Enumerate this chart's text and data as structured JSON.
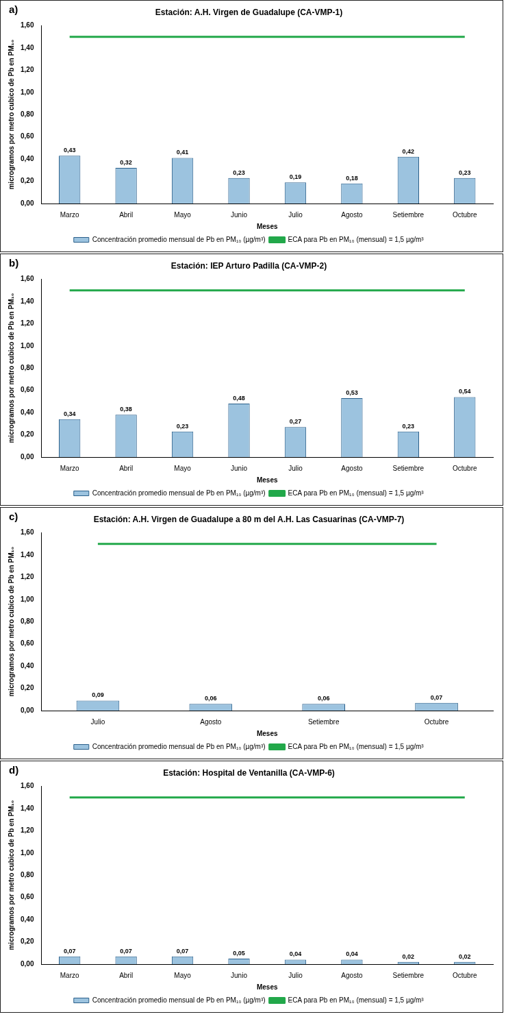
{
  "chart_data": [
    {
      "type": "bar",
      "title": "Estación: A.H. Virgen de Guadalupe (CA-VMP-1)",
      "annotations": [
        "a)"
      ],
      "xlabel": "Meses",
      "ylabel": "microgramos por metro cubico de Pb en PM₁₀",
      "categories": [
        "Marzo",
        "Abril",
        "Mayo",
        "Junio",
        "Julio",
        "Agosto",
        "Setiembre",
        "Octubre"
      ],
      "series": [
        {
          "name": "Concentración promedio mensual de Pb en PM₁₀ (µg/m³)",
          "color": "#9cc3df",
          "values": [
            0.43,
            0.32,
            0.41,
            0.23,
            0.19,
            0.18,
            0.42,
            0.23
          ],
          "value_labels": [
            "0,43",
            "0,32",
            "0,41",
            "0,23",
            "0,19",
            "0,18",
            "0,42",
            "0,23"
          ]
        },
        {
          "name": "ECA para Pb en PM₁₀ (mensual) = 1,5 µg/m³",
          "type": "line",
          "color": "#22a84a",
          "values": [
            1.5,
            1.5,
            1.5,
            1.5,
            1.5,
            1.5,
            1.5,
            1.5
          ]
        }
      ],
      "ylim": [
        0,
        1.6
      ],
      "yticks": [
        {
          "value": 0,
          "label": "0,00"
        },
        {
          "value": 0.2,
          "label": "0,20"
        },
        {
          "value": 0.4,
          "label": "0,40"
        },
        {
          "value": 0.6,
          "label": "0,60"
        },
        {
          "value": 0.8,
          "label": "0,80"
        },
        {
          "value": 1,
          "label": "1,00"
        },
        {
          "value": 1.2,
          "label": "1,20"
        },
        {
          "value": 1.4,
          "label": "1,40"
        },
        {
          "value": 1.6,
          "label": "1,60"
        }
      ],
      "legend": "bottom",
      "marker": "none"
    },
    {
      "type": "bar",
      "title": "Estación: IEP Arturo Padilla (CA-VMP-2)",
      "annotations": [
        "b)"
      ],
      "xlabel": "Meses",
      "ylabel": "microgramos por metro cubico de Pb en PM₁₀",
      "categories": [
        "Marzo",
        "Abril",
        "Mayo",
        "Junio",
        "Julio",
        "Agosto",
        "Setiembre",
        "Octubre"
      ],
      "series": [
        {
          "name": "Concentración promedio mensual de Pb en PM₁₀ (µg/m³)",
          "color": "#9cc3df",
          "values": [
            0.34,
            0.38,
            0.23,
            0.48,
            0.27,
            0.53,
            0.23,
            0.54
          ],
          "value_labels": [
            "0,34",
            "0,38",
            "0,23",
            "0,48",
            "0,27",
            "0,53",
            "0,23",
            "0,54"
          ]
        },
        {
          "name": "ECA para Pb en PM₁₀ (mensual) = 1,5 µg/m³",
          "type": "line",
          "color": "#22a84a",
          "values": [
            1.5,
            1.5,
            1.5,
            1.5,
            1.5,
            1.5,
            1.5,
            1.5
          ]
        }
      ],
      "ylim": [
        0,
        1.6
      ],
      "yticks": [
        {
          "value": 0,
          "label": "0,00"
        },
        {
          "value": 0.2,
          "label": "0,20"
        },
        {
          "value": 0.4,
          "label": "0,40"
        },
        {
          "value": 0.6,
          "label": "0,60"
        },
        {
          "value": 0.8,
          "label": "0,80"
        },
        {
          "value": 1,
          "label": "1,00"
        },
        {
          "value": 1.2,
          "label": "1,20"
        },
        {
          "value": 1.4,
          "label": "1,40"
        },
        {
          "value": 1.6,
          "label": "1,60"
        }
      ],
      "legend": "bottom",
      "marker": "none"
    },
    {
      "type": "bar",
      "title": "Estación: A.H. Virgen de Guadalupe a 80 m del A.H. Las Casuarinas (CA-VMP-7)",
      "annotations": [
        "c)"
      ],
      "xlabel": "Meses",
      "ylabel": "microgramos por metro cubico de Pb en PM₁₀",
      "categories": [
        "Julio",
        "Agosto",
        "Setiembre",
        "Octubre"
      ],
      "series": [
        {
          "name": "Concentración promedio mensual de Pb en PM₁₀ (µg/m³)",
          "color": "#9cc3df",
          "values": [
            0.09,
            0.06,
            0.06,
            0.07
          ],
          "value_labels": [
            "0,09",
            "0,06",
            "0,06",
            "0,07"
          ]
        },
        {
          "name": "ECA para Pb en PM₁₀ (mensual) = 1,5 µg/m³",
          "type": "line",
          "color": "#22a84a",
          "values": [
            1.5,
            1.5,
            1.5,
            1.5
          ]
        }
      ],
      "ylim": [
        0,
        1.6
      ],
      "yticks": [
        {
          "value": 0,
          "label": "0,00"
        },
        {
          "value": 0.2,
          "label": "0,20"
        },
        {
          "value": 0.4,
          "label": "0,40"
        },
        {
          "value": 0.6,
          "label": "0,60"
        },
        {
          "value": 0.8,
          "label": "0,80"
        },
        {
          "value": 1,
          "label": "1,00"
        },
        {
          "value": 1.2,
          "label": "1,20"
        },
        {
          "value": 1.4,
          "label": "1,40"
        },
        {
          "value": 1.6,
          "label": "1,60"
        }
      ],
      "legend": "bottom",
      "marker": "none"
    },
    {
      "type": "bar",
      "title": "Estación: Hospital de Ventanilla (CA-VMP-6)",
      "annotations": [
        "d)"
      ],
      "xlabel": "Meses",
      "ylabel": "microgramos por metro cubico de Pb en PM₁₀",
      "categories": [
        "Marzo",
        "Abril",
        "Mayo",
        "Junio",
        "Julio",
        "Agosto",
        "Setiembre",
        "Octubre"
      ],
      "series": [
        {
          "name": "Concentración promedio mensual de Pb en PM₁₀ (µg/m³)",
          "color": "#9cc3df",
          "values": [
            0.07,
            0.07,
            0.07,
            0.05,
            0.04,
            0.04,
            0.02,
            0.02
          ],
          "value_labels": [
            "0,07",
            "0,07",
            "0,07",
            "0,05",
            "0,04",
            "0,04",
            "0,02",
            "0,02"
          ]
        },
        {
          "name": "ECA para Pb en PM₁₀ (mensual) = 1,5 µg/m³",
          "type": "line",
          "color": "#22a84a",
          "values": [
            1.5,
            1.5,
            1.5,
            1.5,
            1.5,
            1.5,
            1.5,
            1.5
          ]
        }
      ],
      "ylim": [
        0,
        1.6
      ],
      "yticks": [
        {
          "value": 0,
          "label": "0,00"
        },
        {
          "value": 0.2,
          "label": "0,20"
        },
        {
          "value": 0.4,
          "label": "0,40"
        },
        {
          "value": 0.6,
          "label": "0,60"
        },
        {
          "value": 0.8,
          "label": "0,80"
        },
        {
          "value": 1,
          "label": "1,00"
        },
        {
          "value": 1.2,
          "label": "1,20"
        },
        {
          "value": 1.4,
          "label": "1,40"
        },
        {
          "value": 1.6,
          "label": "1,60"
        }
      ],
      "legend": "bottom",
      "marker": "none"
    }
  ]
}
